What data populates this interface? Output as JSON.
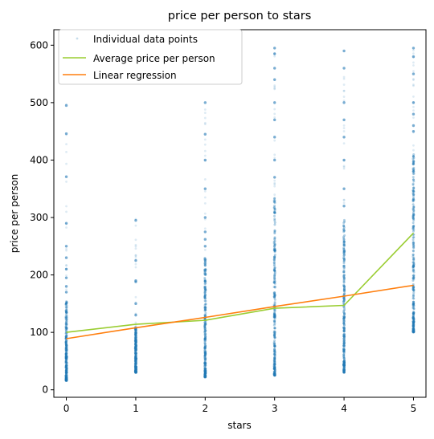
{
  "chart_data": {
    "type": "scatter",
    "title": "price per person to stars",
    "xlabel": "stars",
    "ylabel": "price per person",
    "xlim": [
      -0.18,
      5.18
    ],
    "ylim": [
      -13,
      627
    ],
    "xticks": [
      0,
      1,
      2,
      3,
      4,
      5
    ],
    "yticks": [
      0,
      100,
      200,
      300,
      400,
      500,
      600
    ],
    "legend_position": "upper-left",
    "grid": false,
    "series": [
      {
        "name": "Individual data points",
        "kind": "scatter",
        "color": "#1f77b4",
        "alpha": 0.1,
        "distribution": [
          {
            "x": 0,
            "dense_min": 16,
            "dense_max": 160,
            "sparse_max": 500,
            "visible_points": [
              495,
              446,
              371,
              290,
              250,
              230,
              210,
              195,
              180,
              170
            ]
          },
          {
            "x": 1,
            "dense_min": 30,
            "dense_max": 110,
            "sparse_max": 300,
            "visible_points": [
              295,
              225,
              190,
              188,
              150,
              130
            ]
          },
          {
            "x": 2,
            "dense_min": 22,
            "dense_max": 230,
            "sparse_max": 502,
            "visible_points": [
              500,
              445,
              400,
              350,
              300,
              275,
              262,
              250
            ]
          },
          {
            "x": 3,
            "dense_min": 25,
            "dense_max": 335,
            "sparse_max": 600,
            "visible_points": [
              595,
              585,
              560,
              540,
              500,
              470,
              440,
              400,
              370
            ]
          },
          {
            "x": 4,
            "dense_min": 30,
            "dense_max": 300,
            "sparse_max": 600,
            "visible_points": [
              590,
              560,
              500,
              470,
              440,
              400,
              350,
              320
            ]
          },
          {
            "x": 5,
            "dense_min": 100,
            "dense_max": 410,
            "sparse_max": 600,
            "visible_points": [
              595,
              580,
              550,
              500,
              480,
              460,
              450
            ]
          }
        ]
      },
      {
        "name": "Average price per person",
        "kind": "line",
        "color": "#9acd32",
        "x": [
          0,
          1,
          2,
          3,
          4,
          5
        ],
        "y": [
          100,
          114,
          121,
          142,
          147,
          273
        ]
      },
      {
        "name": "Linear regression",
        "kind": "line",
        "color": "#ff7f0e",
        "x": [
          0,
          1,
          2,
          3,
          4,
          5
        ],
        "y": [
          89,
          108,
          126,
          145,
          163,
          182
        ]
      }
    ]
  }
}
